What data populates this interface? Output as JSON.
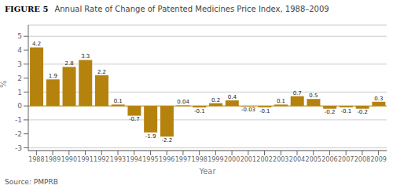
{
  "chart_data": {
    "type": "bar",
    "title": "Annual Rate of Change of Patented Medicines Price Index, 1988–2009",
    "annotations": [
      "FIGURE 5",
      "Source: PMPRB"
    ],
    "xlabel": "Year",
    "ylabel": "%",
    "categories": [
      "1988",
      "1989",
      "1990",
      "1991",
      "1992",
      "1993",
      "1994",
      "1995",
      "1996",
      "1997",
      "1998",
      "1999",
      "2000",
      "2001",
      "2002",
      "2003",
      "2004",
      "2005",
      "2006",
      "2007",
      "2008",
      "2009"
    ],
    "values": [
      4.2,
      1.9,
      2.8,
      3.3,
      2.2,
      0.1,
      -0.7,
      -1.9,
      -2.2,
      0.04,
      -0.1,
      0.2,
      0.4,
      -0.03,
      -0.1,
      0.1,
      0.7,
      0.5,
      -0.2,
      -0.1,
      -0.2,
      0.3
    ],
    "color": "#b5820d",
    "ylim": [
      -3.2,
      5.8
    ],
    "yticks": [
      -3,
      -2,
      -1,
      0,
      1,
      2,
      3,
      4,
      5
    ],
    "grid": true,
    "data_labels": true
  }
}
